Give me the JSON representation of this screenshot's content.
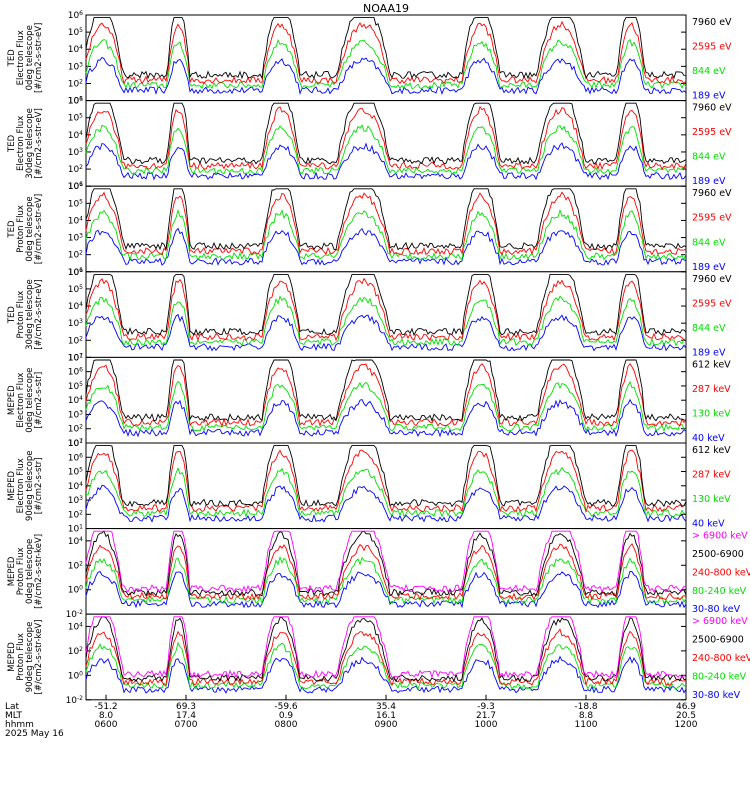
{
  "title": "NOAA19",
  "colors": {
    "black": "#000000",
    "red": "#ff0000",
    "green": "#00e000",
    "blue": "#0000ff",
    "magenta": "#ff00ff"
  },
  "chart_data": [
    {
      "type": "line",
      "ylabel": [
        "TED",
        "Electron Flux",
        "0deg telescope",
        "[#/cm2-s-str-eV]"
      ],
      "log_scale": true,
      "ylim_exp": [
        1,
        6
      ],
      "ytick_exps": [
        1,
        2,
        3,
        4,
        5,
        6
      ],
      "series": [
        {
          "name": "7960 eV",
          "color": "#000000"
        },
        {
          "name": "2595 eV",
          "color": "#ff0000"
        },
        {
          "name": "844 eV",
          "color": "#00e000"
        },
        {
          "name": "189 eV",
          "color": "#0000ff"
        }
      ]
    },
    {
      "type": "line",
      "ylabel": [
        "TED",
        "Electron Flux",
        "30deg telescope",
        "[#/cm2-s-str-eV]"
      ],
      "log_scale": true,
      "ylim_exp": [
        1,
        6
      ],
      "ytick_exps": [
        1,
        2,
        3,
        4,
        5,
        6
      ],
      "series": [
        {
          "name": "7960 eV",
          "color": "#000000"
        },
        {
          "name": "2595 eV",
          "color": "#ff0000"
        },
        {
          "name": "844 eV",
          "color": "#00e000"
        },
        {
          "name": "189 eV",
          "color": "#0000ff"
        }
      ]
    },
    {
      "type": "line",
      "ylabel": [
        "TED",
        "Proton Flux",
        "0deg telescope",
        "[#/cm2-s-str-eV]"
      ],
      "log_scale": true,
      "ylim_exp": [
        1,
        6
      ],
      "ytick_exps": [
        1,
        2,
        3,
        4,
        5,
        6
      ],
      "series": [
        {
          "name": "7960 eV",
          "color": "#000000"
        },
        {
          "name": "2595 eV",
          "color": "#ff0000"
        },
        {
          "name": "844 eV",
          "color": "#00e000"
        },
        {
          "name": "189 eV",
          "color": "#0000ff"
        }
      ]
    },
    {
      "type": "line",
      "ylabel": [
        "TED",
        "Proton Flux",
        "30deg telescope",
        "[#/cm2-s-str-eV]"
      ],
      "log_scale": true,
      "ylim_exp": [
        1,
        6
      ],
      "ytick_exps": [
        1,
        2,
        3,
        4,
        5,
        6
      ],
      "series": [
        {
          "name": "7960 eV",
          "color": "#000000"
        },
        {
          "name": "2595 eV",
          "color": "#ff0000"
        },
        {
          "name": "844 eV",
          "color": "#00e000"
        },
        {
          "name": "189 eV",
          "color": "#0000ff"
        }
      ]
    },
    {
      "type": "line",
      "ylabel": [
        "MEPED",
        "Electron Flux",
        "0deg telescope",
        "[#/cm2-s-str]"
      ],
      "log_scale": true,
      "ylim_exp": [
        1,
        7
      ],
      "ytick_exps": [
        1,
        2,
        3,
        4,
        5,
        6,
        7
      ],
      "series": [
        {
          "name": "612 keV",
          "color": "#000000"
        },
        {
          "name": "287 keV",
          "color": "#ff0000"
        },
        {
          "name": "130 keV",
          "color": "#00e000"
        },
        {
          "name": "40 keV",
          "color": "#0000ff"
        }
      ]
    },
    {
      "type": "line",
      "ylabel": [
        "MEPED",
        "Electron Flux",
        "90deg telescope",
        "[#/cm2-s-str]"
      ],
      "log_scale": true,
      "ylim_exp": [
        1,
        7
      ],
      "ytick_exps": [
        1,
        2,
        3,
        4,
        5,
        6,
        7
      ],
      "series": [
        {
          "name": "612 keV",
          "color": "#000000"
        },
        {
          "name": "287 keV",
          "color": "#ff0000"
        },
        {
          "name": "130 keV",
          "color": "#00e000"
        },
        {
          "name": "40 keV",
          "color": "#0000ff"
        }
      ]
    },
    {
      "type": "line",
      "ylabel": [
        "MEPED",
        "Proton Flux",
        "0deg telescope",
        "[#/cm2-s-str-keV]"
      ],
      "log_scale": true,
      "ylim_exp": [
        -2,
        5
      ],
      "ytick_exps": [
        -2,
        0,
        2,
        4
      ],
      "series": [
        {
          "name": "> 6900 keV",
          "color": "#ff00ff"
        },
        {
          "name": "2500-6900",
          "color": "#000000"
        },
        {
          "name": "240-800 keV",
          "color": "#ff0000"
        },
        {
          "name": "80-240 keV",
          "color": "#00e000"
        },
        {
          "name": "30-80 keV",
          "color": "#0000ff"
        }
      ]
    },
    {
      "type": "line",
      "ylabel": [
        "MEPED",
        "Proton Flux",
        "90deg telescope",
        "[#/cm2-s-str-keV]"
      ],
      "log_scale": true,
      "ylim_exp": [
        -2,
        5
      ],
      "ytick_exps": [
        -2,
        0,
        2,
        4
      ],
      "series": [
        {
          "name": "> 6900 keV",
          "color": "#ff00ff"
        },
        {
          "name": "2500-6900",
          "color": "#000000"
        },
        {
          "name": "240-800 keV",
          "color": "#ff0000"
        },
        {
          "name": "80-240 keV",
          "color": "#00e000"
        },
        {
          "name": "30-80 keV",
          "color": "#0000ff"
        }
      ]
    }
  ],
  "x_axis": {
    "row_labels": [
      "Lat",
      "MLT",
      "hhmm"
    ],
    "date": "2025 May 16",
    "xlim_hours": [
      6,
      12
    ],
    "ticks": [
      {
        "hour": 6.2,
        "lat": "-51.2",
        "mlt": "8.0",
        "hhmm": "0600"
      },
      {
        "hour": 7.0,
        "lat": "69.3",
        "mlt": "17.4",
        "hhmm": "0700"
      },
      {
        "hour": 8.0,
        "lat": "-59.6",
        "mlt": "0.9",
        "hhmm": "0800"
      },
      {
        "hour": 9.0,
        "lat": "35.4",
        "mlt": "16.1",
        "hhmm": "0900"
      },
      {
        "hour": 10.0,
        "lat": "-9.3",
        "mlt": "21.7",
        "hhmm": "1000"
      },
      {
        "hour": 11.0,
        "lat": "-18.8",
        "mlt": "8.8",
        "hhmm": "1100"
      },
      {
        "hour": 12.0,
        "lat": "46.9",
        "mlt": "20.5",
        "hhmm": "1200"
      }
    ]
  }
}
